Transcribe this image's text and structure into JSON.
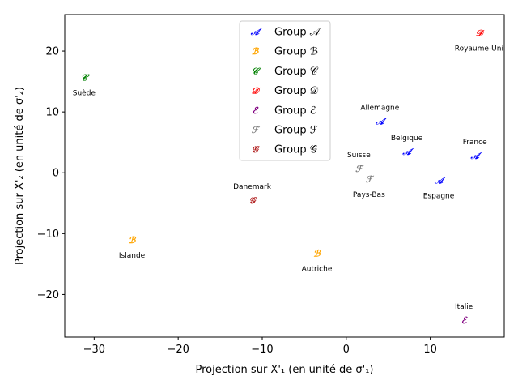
{
  "chart_data": {
    "type": "scatter",
    "xlabel": "Projection sur X'₁ (en unité de σ'₁)",
    "ylabel": "Projection sur X'₂ (en unité de σ'₂)",
    "xlim": [
      -33.5,
      18.8
    ],
    "ylim": [
      -27,
      26
    ],
    "xticks": [
      -30,
      -20,
      -10,
      0,
      10
    ],
    "yticks": [
      -20,
      -10,
      0,
      10,
      20
    ],
    "xtick_labels": [
      "−30",
      "−20",
      "−10",
      "0",
      "10"
    ],
    "ytick_labels": [
      "−20",
      "−10",
      "0",
      "10",
      "20"
    ],
    "grid": false,
    "legend_position": "top-center",
    "series": [
      {
        "name": "Group 𝒜",
        "symbol": "𝒜",
        "color": "#0000ff",
        "points": [
          {
            "x": 4.0,
            "y": 8.5,
            "label": "Allemagne"
          },
          {
            "x": 7.2,
            "y": 3.5,
            "label": "Belgique"
          },
          {
            "x": 11.0,
            "y": -1.2,
            "label": "Espagne"
          },
          {
            "x": 15.3,
            "y": 2.8,
            "label": "France"
          }
        ]
      },
      {
        "name": "Group ℬ",
        "symbol": "ℬ",
        "color": "#ffa500",
        "points": [
          {
            "x": -25.5,
            "y": -11.0,
            "label": "Islande"
          },
          {
            "x": -3.5,
            "y": -13.2,
            "label": "Autriche"
          }
        ]
      },
      {
        "name": "Group 𝒞",
        "symbol": "𝒞",
        "color": "#008000",
        "points": [
          {
            "x": -31.2,
            "y": 15.7,
            "label": "Suède"
          }
        ]
      },
      {
        "name": "Group 𝒟",
        "symbol": "𝒟",
        "color": "#ff0000",
        "points": [
          {
            "x": 15.8,
            "y": 23.0,
            "label": "Royaume-Uni"
          }
        ]
      },
      {
        "name": "Group ℰ",
        "symbol": "ℰ",
        "color": "#800080",
        "points": [
          {
            "x": 14.0,
            "y": -24.2,
            "label": "Italie"
          }
        ]
      },
      {
        "name": "Group ℱ",
        "symbol": "ℱ",
        "color": "#808080",
        "points": [
          {
            "x": 1.5,
            "y": 0.7,
            "label": "Suisse"
          },
          {
            "x": 2.7,
            "y": -1.0,
            "label": "Pays-Bas"
          }
        ]
      },
      {
        "name": "Group 𝒢",
        "symbol": "𝒢",
        "color": "#b22222",
        "points": [
          {
            "x": -11.2,
            "y": -4.5,
            "label": "Danemark"
          }
        ]
      }
    ]
  }
}
